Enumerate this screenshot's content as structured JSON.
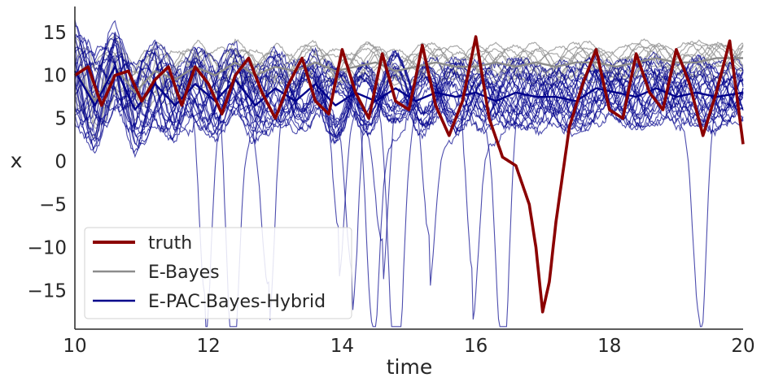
{
  "chart_data": {
    "type": "line",
    "title": "",
    "xlabel": "time",
    "ylabel": "x",
    "xlim": [
      10,
      20
    ],
    "ylim": [
      -19.5,
      18
    ],
    "xticks": [
      10,
      12,
      14,
      16,
      18,
      20
    ],
    "yticks": [
      -15,
      -10,
      -5,
      0,
      5,
      10,
      15
    ],
    "grid": false,
    "legend": {
      "placement": "lower-left",
      "entries": [
        {
          "name": "truth",
          "color": "#8b0000"
        },
        {
          "name": "E-Bayes",
          "color": "#8c8c8c"
        },
        {
          "name": "E-PAC-Bayes-Hybrid",
          "color": "#00008b"
        }
      ]
    },
    "series": [
      {
        "name": "truth",
        "color": "#8b0000",
        "x": [
          10.0,
          10.2,
          10.4,
          10.6,
          10.8,
          11.0,
          11.2,
          11.4,
          11.6,
          11.8,
          12.0,
          12.2,
          12.4,
          12.6,
          12.8,
          13.0,
          13.2,
          13.4,
          13.6,
          13.8,
          14.0,
          14.2,
          14.4,
          14.6,
          14.8,
          15.0,
          15.2,
          15.4,
          15.6,
          15.8,
          16.0,
          16.2,
          16.4,
          16.6,
          16.8,
          16.9,
          17.0,
          17.1,
          17.2,
          17.4,
          17.6,
          17.8,
          18.0,
          18.2,
          18.4,
          18.6,
          18.8,
          19.0,
          19.2,
          19.4,
          19.6,
          19.8,
          20.0
        ],
        "y": [
          10.0,
          11.0,
          6.5,
          10.0,
          10.5,
          7.0,
          9.5,
          11.0,
          6.5,
          11.0,
          9.0,
          5.5,
          10.0,
          12.0,
          8.0,
          5.0,
          9.0,
          12.0,
          7.0,
          5.5,
          13.0,
          8.0,
          5.0,
          12.5,
          7.0,
          6.0,
          13.5,
          6.5,
          3.0,
          7.0,
          14.5,
          5.0,
          0.5,
          -0.5,
          -5.0,
          -10.0,
          -17.5,
          -14.0,
          -7.0,
          4.0,
          9.0,
          13.0,
          6.0,
          5.0,
          12.5,
          8.0,
          6.0,
          13.0,
          9.0,
          3.0,
          8.0,
          14.0,
          2.0
        ]
      },
      {
        "name": "E-Bayes",
        "color": "#8c8c8c",
        "x": [
          10.0,
          10.3,
          10.6,
          10.9,
          11.2,
          11.5,
          11.8,
          12.1,
          12.4,
          12.7,
          13.0,
          13.3,
          13.6,
          13.9,
          14.2,
          14.5,
          14.8,
          15.1,
          15.4,
          15.7,
          16.0,
          16.3,
          16.6,
          16.9,
          17.2,
          17.5,
          17.8,
          18.1,
          18.4,
          18.7,
          19.0,
          19.3,
          19.6,
          20.0
        ],
        "y": [
          10.5,
          7.0,
          11.0,
          8.0,
          10.5,
          9.5,
          11.0,
          10.0,
          11.5,
          10.0,
          11.0,
          10.5,
          11.5,
          10.5,
          11.0,
          11.5,
          10.5,
          11.0,
          11.5,
          11.0,
          11.0,
          11.5,
          11.0,
          11.5,
          11.0,
          11.5,
          11.5,
          11.0,
          11.5,
          12.0,
          11.5,
          11.5,
          12.0,
          12.0
        ]
      },
      {
        "name": "E-PAC-Bayes-Hybrid",
        "color": "#00008b",
        "x": [
          10.0,
          10.3,
          10.6,
          10.9,
          11.2,
          11.5,
          11.8,
          12.1,
          12.4,
          12.7,
          13.0,
          13.3,
          13.6,
          13.9,
          14.2,
          14.5,
          14.8,
          15.1,
          15.4,
          15.7,
          16.0,
          16.3,
          16.6,
          16.9,
          17.2,
          17.5,
          17.8,
          18.1,
          18.4,
          18.7,
          19.0,
          19.3,
          19.6,
          20.0
        ],
        "y": [
          10.5,
          6.5,
          11.0,
          6.0,
          9.0,
          6.5,
          9.0,
          7.0,
          9.5,
          6.5,
          8.5,
          7.0,
          9.0,
          6.5,
          8.0,
          7.0,
          8.5,
          7.0,
          8.0,
          7.5,
          8.0,
          7.0,
          8.0,
          7.5,
          7.5,
          7.0,
          8.5,
          8.0,
          7.5,
          8.5,
          7.5,
          8.0,
          7.5,
          8.0
        ]
      }
    ],
    "ensemble_members_shown": {
      "E-Bayes": 10,
      "E-PAC-Bayes-Hybrid": 24
    }
  },
  "colors": {
    "axis": "#262626",
    "truth": "#8b0000",
    "ebayes": "#8c8c8c",
    "hybrid": "#00008b"
  }
}
